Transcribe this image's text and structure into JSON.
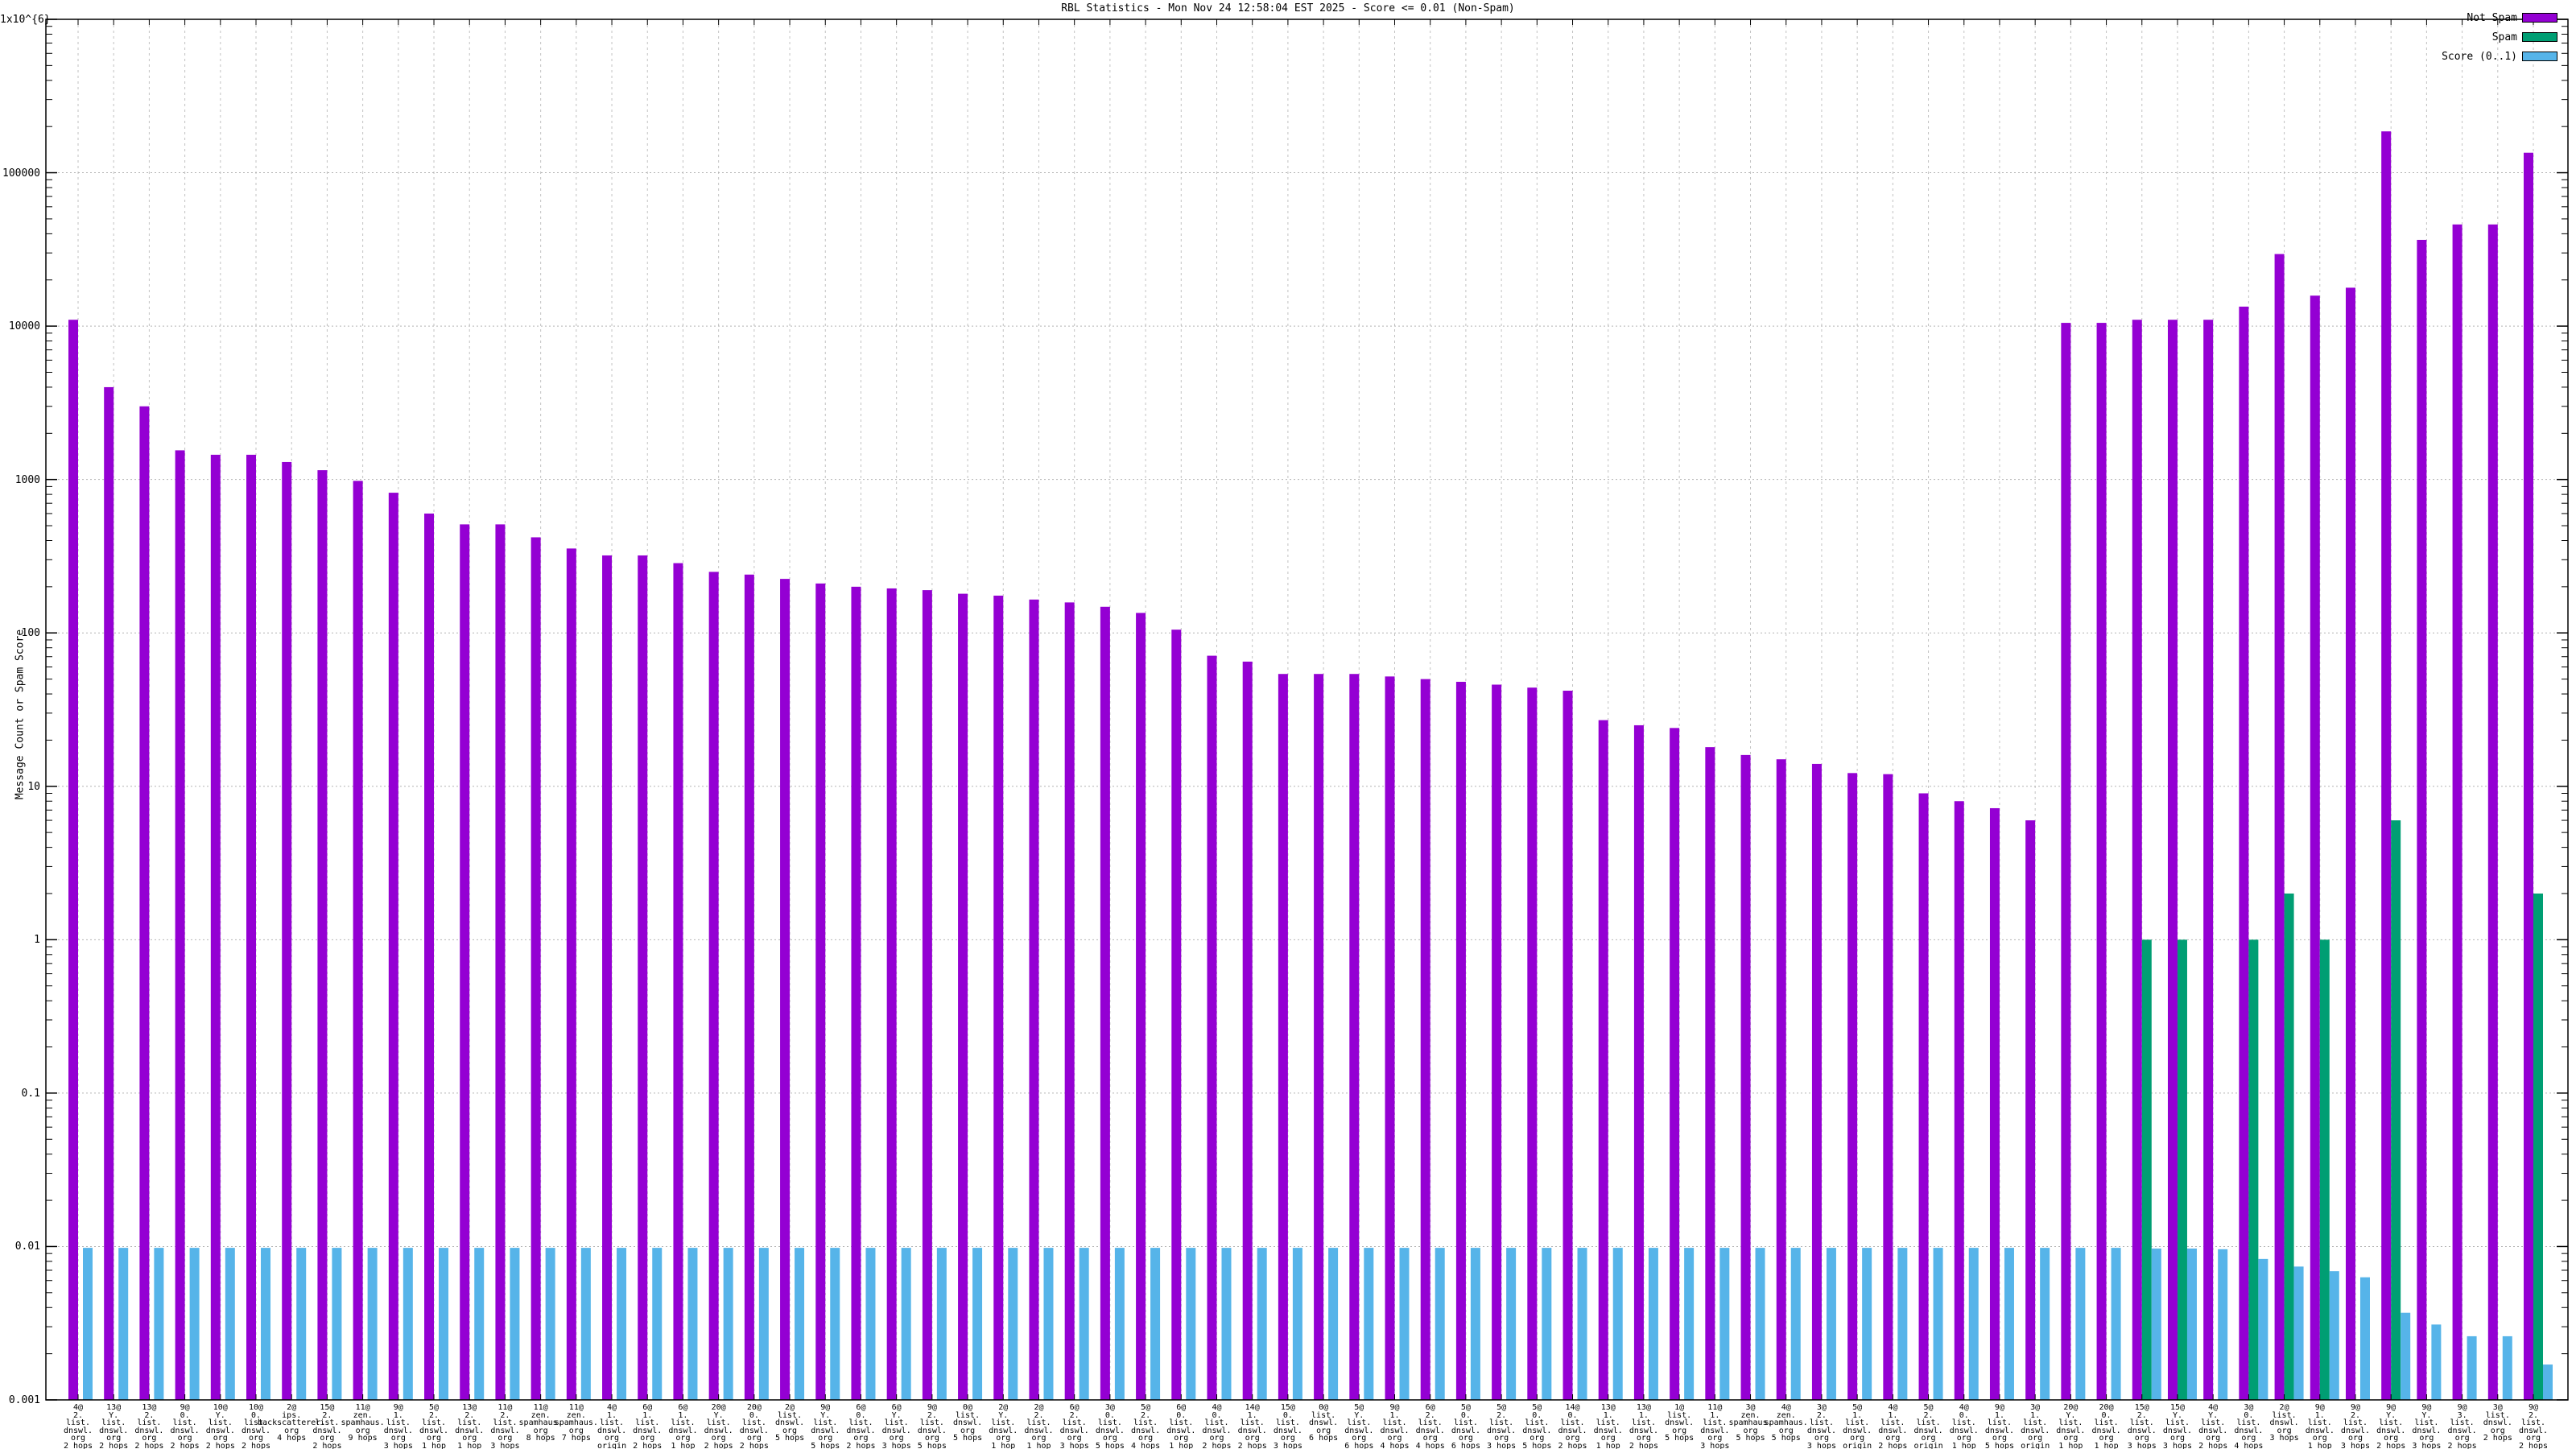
{
  "chart_data": {
    "type": "bar",
    "title": "RBL Statistics - Mon Nov 24 12:58:04 EST 2025 - Score <= 0.01 (Non-Spam)",
    "ylabel": "Message Count or Spam Score",
    "y_scale": "log10",
    "ylim": [
      0.001,
      1000000
    ],
    "y_ticks": [
      {
        "label": "1x10^{6}",
        "exp": 6
      },
      {
        "label": "100000",
        "exp": 5
      },
      {
        "label": "10000",
        "exp": 4
      },
      {
        "label": "1000",
        "exp": 3
      },
      {
        "label": "100",
        "exp": 2
      },
      {
        "label": "10",
        "exp": 1
      },
      {
        "label": "1",
        "exp": 0
      },
      {
        "label": "0.1",
        "exp": -1
      },
      {
        "label": "0.01",
        "exp": -2
      },
      {
        "label": "0.001",
        "exp": -3
      }
    ],
    "grid": true,
    "legend_position": "top-right",
    "series_names": [
      "Not Spam",
      "Spam",
      "Score (0..1)"
    ],
    "colors": {
      "not_spam": "#9400d3",
      "spam": "#009e73",
      "score": "#56b4e9",
      "grid_h": "#b4b4b4",
      "grid_v": "#c2c2c2",
      "axis": "#000000"
    },
    "groups": [
      {
        "label": [
          "4@",
          "2.",
          "list.",
          "dnswl.",
          "org",
          "2 hops"
        ],
        "not_spam": 11000,
        "spam": 0,
        "score": 0.0098
      },
      {
        "label": [
          "13@",
          "Y.",
          "list.",
          "dnswl.",
          "org",
          "2 hops"
        ],
        "not_spam": 4000,
        "spam": 0,
        "score": 0.0098
      },
      {
        "label": [
          "13@",
          "2.",
          "list.",
          "dnswl.",
          "org",
          "2 hops"
        ],
        "not_spam": 3000,
        "spam": 0,
        "score": 0.0098
      },
      {
        "label": [
          "9@",
          "0.",
          "list.",
          "dnswl.",
          "org",
          "2 hops"
        ],
        "not_spam": 1550,
        "spam": 0,
        "score": 0.0098
      },
      {
        "label": [
          "10@",
          "Y.",
          "list.",
          "dnswl.",
          "org",
          "2 hops"
        ],
        "not_spam": 1450,
        "spam": 0,
        "score": 0.0098
      },
      {
        "label": [
          "10@",
          "0.",
          "list.",
          "dnswl.",
          "org",
          "2 hops"
        ],
        "not_spam": 1450,
        "spam": 0,
        "score": 0.0098
      },
      {
        "label": [
          "2@",
          "ips.",
          "backscatterer.",
          "org",
          "4 hops"
        ],
        "not_spam": 1300,
        "spam": 0,
        "score": 0.0098
      },
      {
        "label": [
          "15@",
          "2.",
          "list.",
          "dnswl.",
          "org",
          "2 hops"
        ],
        "not_spam": 1150,
        "spam": 0,
        "score": 0.0098
      },
      {
        "label": [
          "11@",
          "zen.",
          "spamhaus.",
          "org",
          "9 hops"
        ],
        "not_spam": 980,
        "spam": 0,
        "score": 0.0098
      },
      {
        "label": [
          "9@",
          "1.",
          "list.",
          "dnswl.",
          "org",
          "3 hops"
        ],
        "not_spam": 820,
        "spam": 0,
        "score": 0.0098
      },
      {
        "label": [
          "5@",
          "2.",
          "list.",
          "dnswl.",
          "org",
          "1 hop"
        ],
        "not_spam": 600,
        "spam": 0,
        "score": 0.0098
      },
      {
        "label": [
          "13@",
          "2.",
          "list.",
          "dnswl.",
          "org",
          "1 hop"
        ],
        "not_spam": 510,
        "spam": 0,
        "score": 0.0098
      },
      {
        "label": [
          "11@",
          "2.",
          "list.",
          "dnswl.",
          "org",
          "3 hops"
        ],
        "not_spam": 510,
        "spam": 0,
        "score": 0.0098
      },
      {
        "label": [
          "11@",
          "zen.",
          "spamhaus.",
          "org",
          "8 hops"
        ],
        "not_spam": 420,
        "spam": 0,
        "score": 0.0098
      },
      {
        "label": [
          "11@",
          "zen.",
          "spamhaus.",
          "org",
          "7 hops"
        ],
        "not_spam": 355,
        "spam": 0,
        "score": 0.0098
      },
      {
        "label": [
          "4@",
          "1.",
          "list.",
          "dnswl.",
          "org",
          "origin"
        ],
        "not_spam": 320,
        "spam": 0,
        "score": 0.0098
      },
      {
        "label": [
          "6@",
          "1.",
          "list.",
          "dnswl.",
          "org",
          "2 hops"
        ],
        "not_spam": 320,
        "spam": 0,
        "score": 0.0098
      },
      {
        "label": [
          "6@",
          "1.",
          "list.",
          "dnswl.",
          "org",
          "1 hop"
        ],
        "not_spam": 285,
        "spam": 0,
        "score": 0.0098
      },
      {
        "label": [
          "20@",
          "Y.",
          "list.",
          "dnswl.",
          "org",
          "2 hops"
        ],
        "not_spam": 250,
        "spam": 0,
        "score": 0.0098
      },
      {
        "label": [
          "20@",
          "0.",
          "list.",
          "dnswl.",
          "org",
          "2 hops"
        ],
        "not_spam": 240,
        "spam": 0,
        "score": 0.0098
      },
      {
        "label": [
          "2@",
          "list.",
          "dnswl.",
          "org",
          "5 hops"
        ],
        "not_spam": 225,
        "spam": 0,
        "score": 0.0098
      },
      {
        "label": [
          "9@",
          "Y.",
          "list.",
          "dnswl.",
          "org",
          "5 hops"
        ],
        "not_spam": 210,
        "spam": 0,
        "score": 0.0098
      },
      {
        "label": [
          "6@",
          "0.",
          "list.",
          "dnswl.",
          "org",
          "2 hops"
        ],
        "not_spam": 200,
        "spam": 0,
        "score": 0.0098
      },
      {
        "label": [
          "6@",
          "Y.",
          "list.",
          "dnswl.",
          "org",
          "3 hops"
        ],
        "not_spam": 195,
        "spam": 0,
        "score": 0.0098
      },
      {
        "label": [
          "9@",
          "2.",
          "list.",
          "dnswl.",
          "org",
          "5 hops"
        ],
        "not_spam": 190,
        "spam": 0,
        "score": 0.0098
      },
      {
        "label": [
          "0@",
          "list.",
          "dnswl.",
          "org",
          "5 hops"
        ],
        "not_spam": 180,
        "spam": 0,
        "score": 0.0098
      },
      {
        "label": [
          "2@",
          "Y.",
          "list.",
          "dnswl.",
          "org",
          "1 hop"
        ],
        "not_spam": 175,
        "spam": 0,
        "score": 0.0098
      },
      {
        "label": [
          "2@",
          "2.",
          "list.",
          "dnswl.",
          "org",
          "1 hop"
        ],
        "not_spam": 165,
        "spam": 0,
        "score": 0.0098
      },
      {
        "label": [
          "6@",
          "2.",
          "list.",
          "dnswl.",
          "org",
          "3 hops"
        ],
        "not_spam": 158,
        "spam": 0,
        "score": 0.0098
      },
      {
        "label": [
          "3@",
          "0.",
          "list.",
          "dnswl.",
          "org",
          "5 hops"
        ],
        "not_spam": 148,
        "spam": 0,
        "score": 0.0098
      },
      {
        "label": [
          "5@",
          "2.",
          "list.",
          "dnswl.",
          "org",
          "4 hops"
        ],
        "not_spam": 135,
        "spam": 0,
        "score": 0.0098
      },
      {
        "label": [
          "6@",
          "0.",
          "list.",
          "dnswl.",
          "org",
          "1 hop"
        ],
        "not_spam": 105,
        "spam": 0,
        "score": 0.0098
      },
      {
        "label": [
          "4@",
          "0.",
          "list.",
          "dnswl.",
          "org",
          "2 hops"
        ],
        "not_spam": 71,
        "spam": 0,
        "score": 0.0098
      },
      {
        "label": [
          "14@",
          "1.",
          "list.",
          "dnswl.",
          "org",
          "2 hops"
        ],
        "not_spam": 65,
        "spam": 0,
        "score": 0.0098
      },
      {
        "label": [
          "15@",
          "0.",
          "list.",
          "dnswl.",
          "org",
          "3 hops"
        ],
        "not_spam": 54,
        "spam": 0,
        "score": 0.0098
      },
      {
        "label": [
          "0@",
          "list.",
          "dnswl.",
          "org",
          "6 hops"
        ],
        "not_spam": 54,
        "spam": 0,
        "score": 0.0098
      },
      {
        "label": [
          "5@",
          "Y.",
          "list.",
          "dnswl.",
          "org",
          "6 hops"
        ],
        "not_spam": 54,
        "spam": 0,
        "score": 0.0098
      },
      {
        "label": [
          "9@",
          "1.",
          "list.",
          "dnswl.",
          "org",
          "4 hops"
        ],
        "not_spam": 52,
        "spam": 0,
        "score": 0.0098
      },
      {
        "label": [
          "6@",
          "2.",
          "list.",
          "dnswl.",
          "org",
          "4 hops"
        ],
        "not_spam": 50,
        "spam": 0,
        "score": 0.0098
      },
      {
        "label": [
          "5@",
          "0.",
          "list.",
          "dnswl.",
          "org",
          "6 hops"
        ],
        "not_spam": 48,
        "spam": 0,
        "score": 0.0098
      },
      {
        "label": [
          "5@",
          "2.",
          "list.",
          "dnswl.",
          "org",
          "3 hops"
        ],
        "not_spam": 46,
        "spam": 0,
        "score": 0.0098
      },
      {
        "label": [
          "5@",
          "0.",
          "list.",
          "dnswl.",
          "org",
          "5 hops"
        ],
        "not_spam": 44,
        "spam": 0,
        "score": 0.0098
      },
      {
        "label": [
          "14@",
          "0.",
          "list.",
          "dnswl.",
          "org",
          "2 hops"
        ],
        "not_spam": 42,
        "spam": 0,
        "score": 0.0098
      },
      {
        "label": [
          "13@",
          "1.",
          "list.",
          "dnswl.",
          "org",
          "1 hop"
        ],
        "not_spam": 27,
        "spam": 0,
        "score": 0.0098
      },
      {
        "label": [
          "13@",
          "1.",
          "list.",
          "dnswl.",
          "org",
          "2 hops"
        ],
        "not_spam": 25,
        "spam": 0,
        "score": 0.0098
      },
      {
        "label": [
          "1@",
          "list.",
          "dnswl.",
          "org",
          "5 hops"
        ],
        "not_spam": 24,
        "spam": 0,
        "score": 0.0098
      },
      {
        "label": [
          "11@",
          "1.",
          "list.",
          "dnswl.",
          "org",
          "3 hops"
        ],
        "not_spam": 18,
        "spam": 0,
        "score": 0.0098
      },
      {
        "label": [
          "3@",
          "zen.",
          "spamhaus.",
          "org",
          "5 hops"
        ],
        "not_spam": 16,
        "spam": 0,
        "score": 0.0098
      },
      {
        "label": [
          "4@",
          "zen.",
          "spamhaus.",
          "org",
          "5 hops"
        ],
        "not_spam": 15,
        "spam": 0,
        "score": 0.0098
      },
      {
        "label": [
          "3@",
          "2.",
          "list.",
          "dnswl.",
          "org",
          "3 hops"
        ],
        "not_spam": 14,
        "spam": 0,
        "score": 0.0098
      },
      {
        "label": [
          "5@",
          "1.",
          "list.",
          "dnswl.",
          "org",
          "origin"
        ],
        "not_spam": 12.2,
        "spam": 0,
        "score": 0.0098
      },
      {
        "label": [
          "4@",
          "1.",
          "list.",
          "dnswl.",
          "org",
          "2 hops"
        ],
        "not_spam": 12,
        "spam": 0,
        "score": 0.0098
      },
      {
        "label": [
          "5@",
          "2.",
          "list.",
          "dnswl.",
          "org",
          "origin"
        ],
        "not_spam": 9,
        "spam": 0,
        "score": 0.0098
      },
      {
        "label": [
          "4@",
          "0.",
          "list.",
          "dnswl.",
          "org",
          "1 hop"
        ],
        "not_spam": 8,
        "spam": 0,
        "score": 0.0098
      },
      {
        "label": [
          "9@",
          "1.",
          "list.",
          "dnswl.",
          "org",
          "5 hops"
        ],
        "not_spam": 7.2,
        "spam": 0,
        "score": 0.0098
      },
      {
        "label": [
          "3@",
          "1.",
          "list.",
          "dnswl.",
          "org",
          "origin"
        ],
        "not_spam": 6,
        "spam": 0,
        "score": 0.0098
      },
      {
        "label": [
          "20@",
          "Y.",
          "list.",
          "dnswl.",
          "org",
          "1 hop"
        ],
        "not_spam": 10500,
        "spam": 0,
        "score": 0.0098
      },
      {
        "label": [
          "20@",
          "0.",
          "list.",
          "dnswl.",
          "org",
          "1 hop"
        ],
        "not_spam": 10500,
        "spam": 0,
        "score": 0.0098
      },
      {
        "label": [
          "15@",
          "2.",
          "list.",
          "dnswl.",
          "org",
          "3 hops"
        ],
        "not_spam": 11000,
        "spam": 1.0,
        "score": 0.0097
      },
      {
        "label": [
          "15@",
          "Y.",
          "list.",
          "dnswl.",
          "org",
          "3 hops"
        ],
        "not_spam": 11000,
        "spam": 1.0,
        "score": 0.0097
      },
      {
        "label": [
          "4@",
          "Y.",
          "list.",
          "dnswl.",
          "org",
          "2 hops"
        ],
        "not_spam": 11000,
        "spam": 0,
        "score": 0.0096
      },
      {
        "label": [
          "3@",
          "0.",
          "list.",
          "dnswl.",
          "org",
          "4 hops"
        ],
        "not_spam": 13400,
        "spam": 1.0,
        "score": 0.0083
      },
      {
        "label": [
          "2@",
          "list.",
          "dnswl.",
          "org",
          "3 hops"
        ],
        "not_spam": 29500,
        "spam": 2.0,
        "score": 0.0074
      },
      {
        "label": [
          "9@",
          "1.",
          "list.",
          "dnswl.",
          "org",
          "1 hop"
        ],
        "not_spam": 15800,
        "spam": 1.0,
        "score": 0.0069
      },
      {
        "label": [
          "9@",
          "2.",
          "list.",
          "dnswl.",
          "org",
          "3 hops"
        ],
        "not_spam": 17800,
        "spam": 0,
        "score": 0.0063
      },
      {
        "label": [
          "9@",
          "Y.",
          "list.",
          "dnswl.",
          "org",
          "2 hops"
        ],
        "not_spam": 186000,
        "spam": 6.0,
        "score": 0.0037
      },
      {
        "label": [
          "9@",
          "Y.",
          "list.",
          "dnswl.",
          "org",
          "3 hops"
        ],
        "not_spam": 36500,
        "spam": 0,
        "score": 0.0031
      },
      {
        "label": [
          "9@",
          "3.",
          "list.",
          "dnswl.",
          "org",
          "2 hops"
        ],
        "not_spam": 46000,
        "spam": 0,
        "score": 0.0026
      },
      {
        "label": [
          "3@",
          "list.",
          "dnswl.",
          "org",
          "2 hops"
        ],
        "not_spam": 46000,
        "spam": 0,
        "score": 0.0026
      },
      {
        "label": [
          "9@",
          "2.",
          "list.",
          "dnswl.",
          "org",
          "2 hops"
        ],
        "not_spam": 135000,
        "spam": 2.0,
        "score": 0.0017
      }
    ]
  },
  "legend": [
    {
      "label": "Not Spam",
      "color": "#9400d3"
    },
    {
      "label": "Spam",
      "color": "#009e73"
    },
    {
      "label": "Score (0..1)",
      "color": "#56b4e9"
    }
  ]
}
